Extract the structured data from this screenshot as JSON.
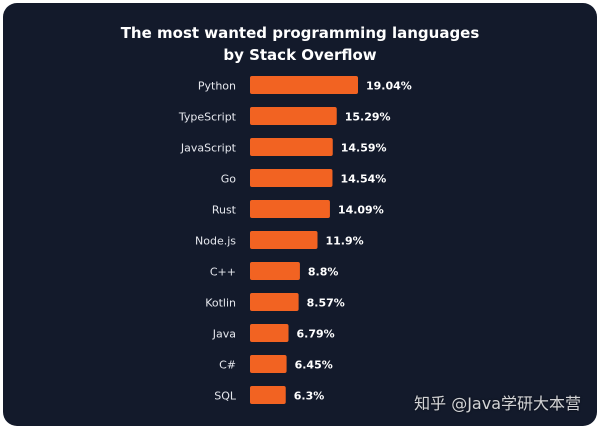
{
  "chart_data": {
    "type": "bar",
    "orientation": "horizontal",
    "title_lines": [
      "The most wanted programming languages",
      "by Stack Overflow"
    ],
    "categories": [
      "Python",
      "TypeScript",
      "JavaScript",
      "Go",
      "Rust",
      "Node.js",
      "C++",
      "Kotlin",
      "Java",
      "C#",
      "SQL"
    ],
    "values": [
      19.04,
      15.29,
      14.59,
      14.54,
      14.09,
      11.9,
      8.8,
      8.57,
      6.79,
      6.45,
      6.3
    ],
    "value_labels": [
      "19.04%",
      "15.29%",
      "14.59%",
      "14.54%",
      "14.09%",
      "11.9%",
      "8.8%",
      "8.57%",
      "6.79%",
      "6.45%",
      "6.3%"
    ],
    "grid": false,
    "legend": "none"
  },
  "watermark": "知乎 @Java学研大本营",
  "colors": {
    "background": "#131a2b",
    "bar": "#f26322",
    "text": "#ffffff",
    "label_text": "#e6e8ee"
  }
}
